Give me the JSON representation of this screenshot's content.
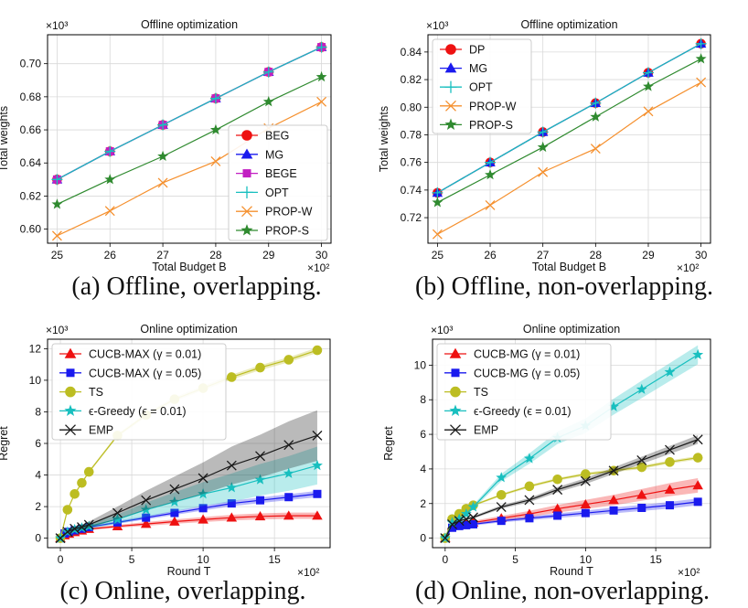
{
  "figure": {
    "captions": [
      "(a) Offline, overlapping.",
      "(b) Offline, non-overlapping.",
      "(c) Online, overlapping.",
      "(d) Online, non-overlapping."
    ]
  },
  "colors": {
    "red": "#ee1111",
    "blue": "#1a1aee",
    "magenta": "#c21fc2",
    "cyan": "#18bfbf",
    "orange": "#f5902e",
    "green": "#2f8a2f",
    "olive": "#bcbd22",
    "black": "#1a1a1a",
    "grid": "#d9d9d9"
  },
  "chart_data": [
    {
      "type": "line",
      "title": "Offline optimization",
      "xlabel": "Total Budget B",
      "ylabel": "Total weights",
      "x_multiplier": "×10²",
      "y_multiplier": "×10³",
      "x": [
        25,
        26,
        27,
        28,
        29,
        30
      ],
      "xticks": [
        25,
        26,
        27,
        28,
        29,
        30
      ],
      "xlim": [
        24.82,
        30.18
      ],
      "yticks": [
        0.6,
        0.62,
        0.64,
        0.66,
        0.68,
        0.7
      ],
      "ylim": [
        0.5915,
        0.7175
      ],
      "legend_loc": "lower right",
      "series": [
        {
          "name": "BEG",
          "color": "red",
          "marker": "circle",
          "values": [
            0.63,
            0.647,
            0.663,
            0.679,
            0.695,
            0.71
          ]
        },
        {
          "name": "MG",
          "color": "blue",
          "marker": "triangle",
          "values": [
            0.63,
            0.647,
            0.663,
            0.679,
            0.695,
            0.71
          ]
        },
        {
          "name": "BEGE",
          "color": "magenta",
          "marker": "square",
          "values": [
            0.63,
            0.647,
            0.663,
            0.679,
            0.695,
            0.71
          ]
        },
        {
          "name": "OPT",
          "color": "cyan",
          "marker": "plus",
          "values": [
            0.63,
            0.647,
            0.663,
            0.679,
            0.695,
            0.71
          ]
        },
        {
          "name": "PROP-W",
          "color": "orange",
          "marker": "x",
          "values": [
            0.596,
            0.611,
            0.628,
            0.641,
            0.661,
            0.677
          ]
        },
        {
          "name": "PROP-S",
          "color": "green",
          "marker": "star",
          "values": [
            0.615,
            0.63,
            0.644,
            0.66,
            0.677,
            0.692
          ]
        }
      ]
    },
    {
      "type": "line",
      "title": "Offline optimization",
      "xlabel": "Total Budget B",
      "ylabel": "Total weights",
      "x_multiplier": "×10²",
      "y_multiplier": "×10³",
      "x": [
        25,
        26,
        27,
        28,
        29,
        30
      ],
      "xticks": [
        25,
        26,
        27,
        28,
        29,
        30
      ],
      "xlim": [
        24.82,
        30.18
      ],
      "yticks": [
        0.72,
        0.74,
        0.76,
        0.78,
        0.8,
        0.82,
        0.84
      ],
      "ylim": [
        0.7015,
        0.8525
      ],
      "legend_loc": "upper left",
      "series": [
        {
          "name": "DP",
          "color": "red",
          "marker": "circle",
          "values": [
            0.738,
            0.76,
            0.782,
            0.803,
            0.825,
            0.846
          ]
        },
        {
          "name": "MG",
          "color": "blue",
          "marker": "triangle",
          "values": [
            0.738,
            0.76,
            0.782,
            0.803,
            0.825,
            0.846
          ]
        },
        {
          "name": "OPT",
          "color": "cyan",
          "marker": "plus",
          "values": [
            0.738,
            0.76,
            0.782,
            0.803,
            0.825,
            0.846
          ]
        },
        {
          "name": "PROP-W",
          "color": "orange",
          "marker": "x",
          "values": [
            0.708,
            0.729,
            0.753,
            0.77,
            0.797,
            0.818
          ]
        },
        {
          "name": "PROP-S",
          "color": "green",
          "marker": "star",
          "values": [
            0.731,
            0.751,
            0.771,
            0.793,
            0.815,
            0.835
          ]
        }
      ]
    },
    {
      "type": "line",
      "title": "Online optimization",
      "xlabel": "Round T",
      "ylabel": "Regret",
      "x_multiplier": "×10²",
      "y_multiplier": "×10³",
      "xticks": [
        0,
        5,
        10,
        15
      ],
      "xlim": [
        -0.9,
        18.9
      ],
      "yticks": [
        0,
        2,
        4,
        6,
        8,
        10,
        12
      ],
      "ylim": [
        -0.6,
        12.6
      ],
      "legend_loc": "upper left",
      "series": [
        {
          "name": "CUCB-MAX (γ = 0.01)",
          "color": "red",
          "marker": "triangle",
          "x": [
            0,
            0.3,
            0.6,
            1,
            1.5,
            2,
            4,
            6,
            8,
            10,
            12,
            14,
            16,
            18
          ],
          "values": [
            0,
            0.18,
            0.28,
            0.38,
            0.48,
            0.58,
            0.75,
            0.9,
            1.05,
            1.18,
            1.3,
            1.38,
            1.42,
            1.42
          ],
          "band": [
            0,
            0.03,
            0.04,
            0.05,
            0.06,
            0.07,
            0.09,
            0.12,
            0.14,
            0.16,
            0.18,
            0.19,
            0.2,
            0.2
          ]
        },
        {
          "name": "CUCB-MAX (γ = 0.05)",
          "color": "blue",
          "marker": "square",
          "x": [
            0,
            0.3,
            0.6,
            1,
            1.5,
            2,
            4,
            6,
            8,
            10,
            12,
            14,
            16,
            18
          ],
          "values": [
            0,
            0.3,
            0.4,
            0.5,
            0.6,
            0.7,
            1.0,
            1.3,
            1.6,
            1.9,
            2.2,
            2.4,
            2.6,
            2.8
          ],
          "band": [
            0,
            0.03,
            0.04,
            0.05,
            0.06,
            0.07,
            0.09,
            0.11,
            0.13,
            0.15,
            0.17,
            0.18,
            0.19,
            0.2
          ]
        },
        {
          "name": "TS",
          "color": "olive",
          "marker": "circle",
          "x": [
            0,
            0.5,
            1,
            1.5,
            2,
            4,
            6,
            8,
            10,
            12,
            14,
            16,
            18
          ],
          "values": [
            0,
            1.8,
            2.8,
            3.5,
            4.2,
            6.5,
            7.8,
            8.8,
            9.5,
            10.2,
            10.8,
            11.3,
            11.9
          ],
          "band": [
            0,
            0.05,
            0.06,
            0.07,
            0.08,
            0.1,
            0.12,
            0.13,
            0.14,
            0.15,
            0.16,
            0.16,
            0.17
          ]
        },
        {
          "name": "ϵ-Greedy (ϵ = 0.01)",
          "color": "cyan",
          "marker": "star",
          "x": [
            0,
            0.5,
            1,
            1.5,
            2,
            4,
            6,
            8,
            10,
            12,
            14,
            16,
            18
          ],
          "values": [
            0,
            0.4,
            0.55,
            0.65,
            0.75,
            1.2,
            1.8,
            2.3,
            2.8,
            3.2,
            3.7,
            4.1,
            4.6
          ],
          "band": [
            0,
            0.06,
            0.09,
            0.12,
            0.15,
            0.3,
            0.45,
            0.6,
            0.75,
            0.9,
            1.0,
            1.1,
            1.2
          ]
        },
        {
          "name": "EMP",
          "color": "black",
          "marker": "x",
          "x": [
            0,
            0.5,
            1,
            1.5,
            2,
            4,
            6,
            8,
            10,
            12,
            14,
            16,
            18
          ],
          "values": [
            0,
            0.4,
            0.6,
            0.7,
            0.85,
            1.6,
            2.4,
            3.1,
            3.8,
            4.6,
            5.2,
            5.9,
            6.5
          ],
          "band": [
            0,
            0.08,
            0.12,
            0.16,
            0.2,
            0.4,
            0.6,
            0.8,
            1.0,
            1.2,
            1.35,
            1.5,
            1.6
          ]
        }
      ]
    },
    {
      "type": "line",
      "title": "Online optimization",
      "xlabel": "Round T",
      "ylabel": "Regret",
      "x_multiplier": "×10²",
      "y_multiplier": "×10³",
      "xticks": [
        0,
        5,
        10,
        15
      ],
      "xlim": [
        -0.9,
        18.9
      ],
      "yticks": [
        0,
        2,
        4,
        6,
        8,
        10
      ],
      "ylim": [
        -0.55,
        11.5
      ],
      "legend_loc": "upper left",
      "series": [
        {
          "name": "CUCB-MG (γ = 0.01)",
          "color": "red",
          "marker": "triangle",
          "x": [
            0,
            0.5,
            1,
            1.5,
            2,
            4,
            6,
            8,
            10,
            12,
            14,
            16,
            18
          ],
          "values": [
            0,
            0.7,
            0.8,
            0.85,
            0.9,
            1.15,
            1.4,
            1.7,
            1.95,
            2.2,
            2.5,
            2.8,
            3.05
          ],
          "band": [
            0,
            0.06,
            0.08,
            0.09,
            0.1,
            0.14,
            0.18,
            0.22,
            0.26,
            0.3,
            0.34,
            0.38,
            0.42
          ]
        },
        {
          "name": "CUCB-MG (γ = 0.05)",
          "color": "blue",
          "marker": "square",
          "x": [
            0,
            0.5,
            1,
            1.5,
            2,
            4,
            6,
            8,
            10,
            12,
            14,
            16,
            18
          ],
          "values": [
            0,
            0.6,
            0.7,
            0.75,
            0.8,
            1.0,
            1.15,
            1.3,
            1.45,
            1.6,
            1.75,
            1.9,
            2.1
          ],
          "band": [
            0,
            0.04,
            0.05,
            0.06,
            0.07,
            0.09,
            0.11,
            0.13,
            0.15,
            0.17,
            0.18,
            0.19,
            0.2
          ]
        },
        {
          "name": "TS",
          "color": "olive",
          "marker": "circle",
          "x": [
            0,
            0.5,
            1,
            1.5,
            2,
            4,
            6,
            8,
            10,
            12,
            14,
            16,
            18
          ],
          "values": [
            0,
            1.1,
            1.4,
            1.7,
            1.9,
            2.5,
            3.0,
            3.4,
            3.7,
            3.9,
            4.1,
            4.4,
            4.65
          ],
          "band": [
            0,
            0.04,
            0.05,
            0.05,
            0.06,
            0.07,
            0.08,
            0.08,
            0.09,
            0.09,
            0.1,
            0.1,
            0.1
          ]
        },
        {
          "name": "ϵ-Greedy (ϵ = 0.01)",
          "color": "cyan",
          "marker": "star",
          "x": [
            0,
            0.5,
            1,
            1.5,
            2,
            4,
            6,
            8,
            10,
            12,
            14,
            16,
            18
          ],
          "values": [
            0,
            0.9,
            1.1,
            1.4,
            1.8,
            3.5,
            4.6,
            5.8,
            6.5,
            7.6,
            8.6,
            9.6,
            10.6
          ],
          "band": [
            0,
            0.06,
            0.08,
            0.1,
            0.12,
            0.22,
            0.3,
            0.36,
            0.42,
            0.46,
            0.5,
            0.52,
            0.55
          ]
        },
        {
          "name": "EMP",
          "color": "black",
          "marker": "x",
          "x": [
            0,
            0.5,
            1,
            1.5,
            2,
            4,
            6,
            8,
            10,
            12,
            14,
            16,
            18
          ],
          "values": [
            0,
            0.8,
            1.0,
            1.1,
            1.2,
            1.8,
            2.2,
            2.8,
            3.3,
            3.9,
            4.5,
            5.1,
            5.7
          ],
          "band": [
            0,
            0.04,
            0.05,
            0.06,
            0.07,
            0.1,
            0.12,
            0.15,
            0.17,
            0.19,
            0.21,
            0.23,
            0.25
          ]
        }
      ]
    }
  ]
}
